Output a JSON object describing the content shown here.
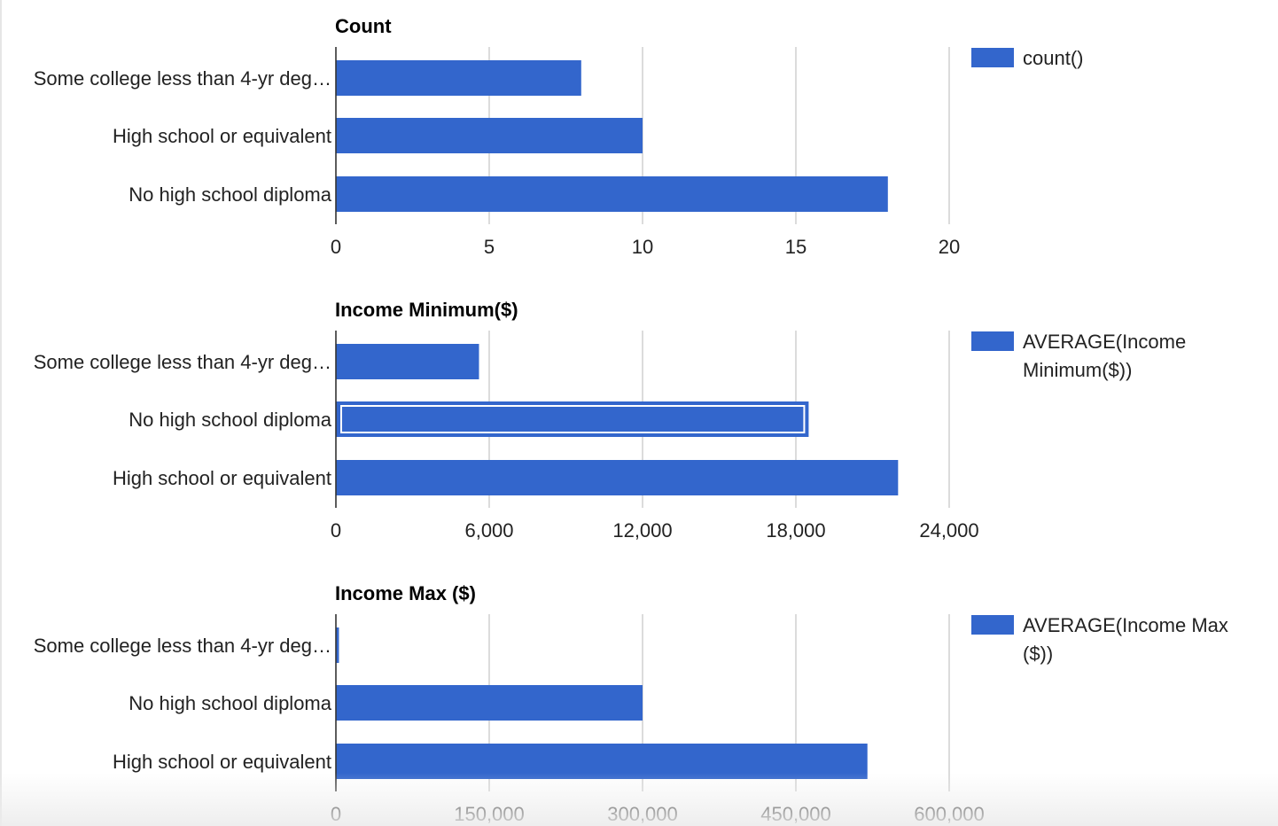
{
  "colors": {
    "bar": "#3366cc",
    "grid": "#cccccc",
    "axis": "#333333",
    "text": "#222222"
  },
  "chart_data": [
    {
      "type": "bar",
      "orientation": "horizontal",
      "title": "Count",
      "categories": [
        "Some college less than 4-yr deg…",
        "High school or equivalent",
        "No high school diploma"
      ],
      "series": [
        {
          "name": "count()",
          "values": [
            8,
            10,
            18
          ]
        }
      ],
      "xlim": [
        0,
        20
      ],
      "ticks": [
        0,
        5,
        10,
        15,
        20
      ],
      "tick_labels": [
        "0",
        "5",
        "10",
        "15",
        "20"
      ],
      "grid": true,
      "legend_position": "right",
      "legend_lines": [
        "count()"
      ],
      "highlighted_index": null
    },
    {
      "type": "bar",
      "orientation": "horizontal",
      "title": "Income Minimum($)",
      "categories": [
        "Some college less than 4-yr deg…",
        "No high school diploma",
        "High school or equivalent"
      ],
      "series": [
        {
          "name": "AVERAGE(Income Minimum($))",
          "values": [
            5600,
            18500,
            22000
          ]
        }
      ],
      "xlim": [
        0,
        24000
      ],
      "ticks": [
        0,
        6000,
        12000,
        18000,
        24000
      ],
      "tick_labels": [
        "0",
        "6,000",
        "12,000",
        "18,000",
        "24,000"
      ],
      "grid": true,
      "legend_position": "right",
      "legend_lines": [
        "AVERAGE(Income",
        "Minimum($))"
      ],
      "highlighted_index": 1
    },
    {
      "type": "bar",
      "orientation": "horizontal",
      "title": "Income Max ($)",
      "categories": [
        "Some college less than 4-yr deg…",
        "No high school diploma",
        "High school or equivalent"
      ],
      "series": [
        {
          "name": "AVERAGE(Income Max ($))",
          "values": [
            3000,
            300000,
            520000
          ]
        }
      ],
      "xlim": [
        0,
        600000
      ],
      "ticks": [
        0,
        150000,
        300000,
        450000,
        600000
      ],
      "tick_labels": [
        "0",
        "150,000",
        "300,000",
        "450,000",
        "600,000"
      ],
      "grid": true,
      "legend_position": "right",
      "legend_lines": [
        "AVERAGE(Income Max",
        "($))"
      ],
      "highlighted_index": null
    }
  ]
}
